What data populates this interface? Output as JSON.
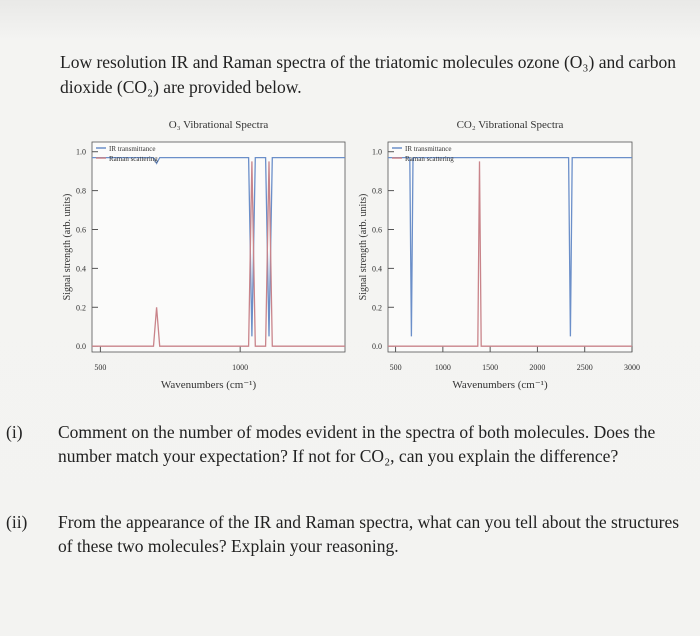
{
  "intro": "Low resolution IR and Raman spectra of the triatomic molecules ozone (O₃) and carbon dioxide (CO₂) are provided below.",
  "chart_data": [
    {
      "type": "line",
      "title": "O₃ Vibrational Spectra",
      "x_label": "Wavenumbers (cm⁻¹)",
      "y_label": "Signal strength (arb. units)",
      "xlim": [
        470,
        1375
      ],
      "ylim": [
        -0.03,
        1.05
      ],
      "xticks": [
        500,
        1000
      ],
      "yticks": [
        {
          "value": 0,
          "label": "0.0"
        },
        0.2,
        0.4,
        0.6,
        0.8,
        {
          "value": 1,
          "label": "1.0"
        }
      ],
      "legend": "upper left",
      "series": [
        {
          "name": "IR transmittance",
          "color": "#6b8fc9",
          "x": [
            470,
            690,
            701,
            712,
            1030,
            1042,
            1054,
            1091,
            1103,
            1115,
            1375
          ],
          "values": [
            0.97,
            0.97,
            0.94,
            0.97,
            0.97,
            0.05,
            0.97,
            0.97,
            0.05,
            0.97,
            0.97
          ]
        },
        {
          "name": "Raman scattering",
          "color": "#c9848a",
          "x": [
            470,
            690,
            701,
            712,
            1030,
            1042,
            1054,
            1091,
            1103,
            1115,
            1375
          ],
          "values": [
            0,
            0,
            0.2,
            0,
            0,
            0.95,
            0,
            0,
            0.95,
            0,
            0
          ]
        }
      ]
    },
    {
      "type": "line",
      "title": "CO₂ Vibrational Spectra",
      "x_label": "Wavenumbers (cm⁻¹)",
      "y_label": "Signal strength (arb. units)",
      "xlim": [
        420,
        3000
      ],
      "ylim": [
        -0.03,
        1.05
      ],
      "xticks": [
        500,
        1000,
        1500,
        2000,
        2500,
        3000
      ],
      "yticks": [
        {
          "value": 0,
          "label": "0.0"
        },
        0.2,
        0.4,
        0.6,
        0.8,
        {
          "value": 1,
          "label": "1.0"
        }
      ],
      "legend": "upper left",
      "series": [
        {
          "name": "IR transmittance",
          "color": "#6b8fc9",
          "x": [
            420,
            650,
            667,
            684,
            2330,
            2349,
            2368,
            3000
          ],
          "values": [
            0.97,
            0.97,
            0.05,
            0.97,
            0.97,
            0.05,
            0.97,
            0.97
          ]
        },
        {
          "name": "Raman scattering",
          "color": "#c9848a",
          "x": [
            420,
            1370,
            1388,
            1406,
            3000
          ],
          "values": [
            0,
            0,
            0.95,
            0,
            0
          ]
        }
      ]
    }
  ],
  "questions": [
    {
      "label": "(i)",
      "text": "Comment on the number of modes evident in the spectra of both molecules. Does the number match your expectation? If not for CO₂, can you explain the difference?"
    },
    {
      "label": "(ii)",
      "text": "From the appearance of the IR and Raman spectra, what can you tell about the structures of these two molecules? Explain your reasoning."
    }
  ]
}
